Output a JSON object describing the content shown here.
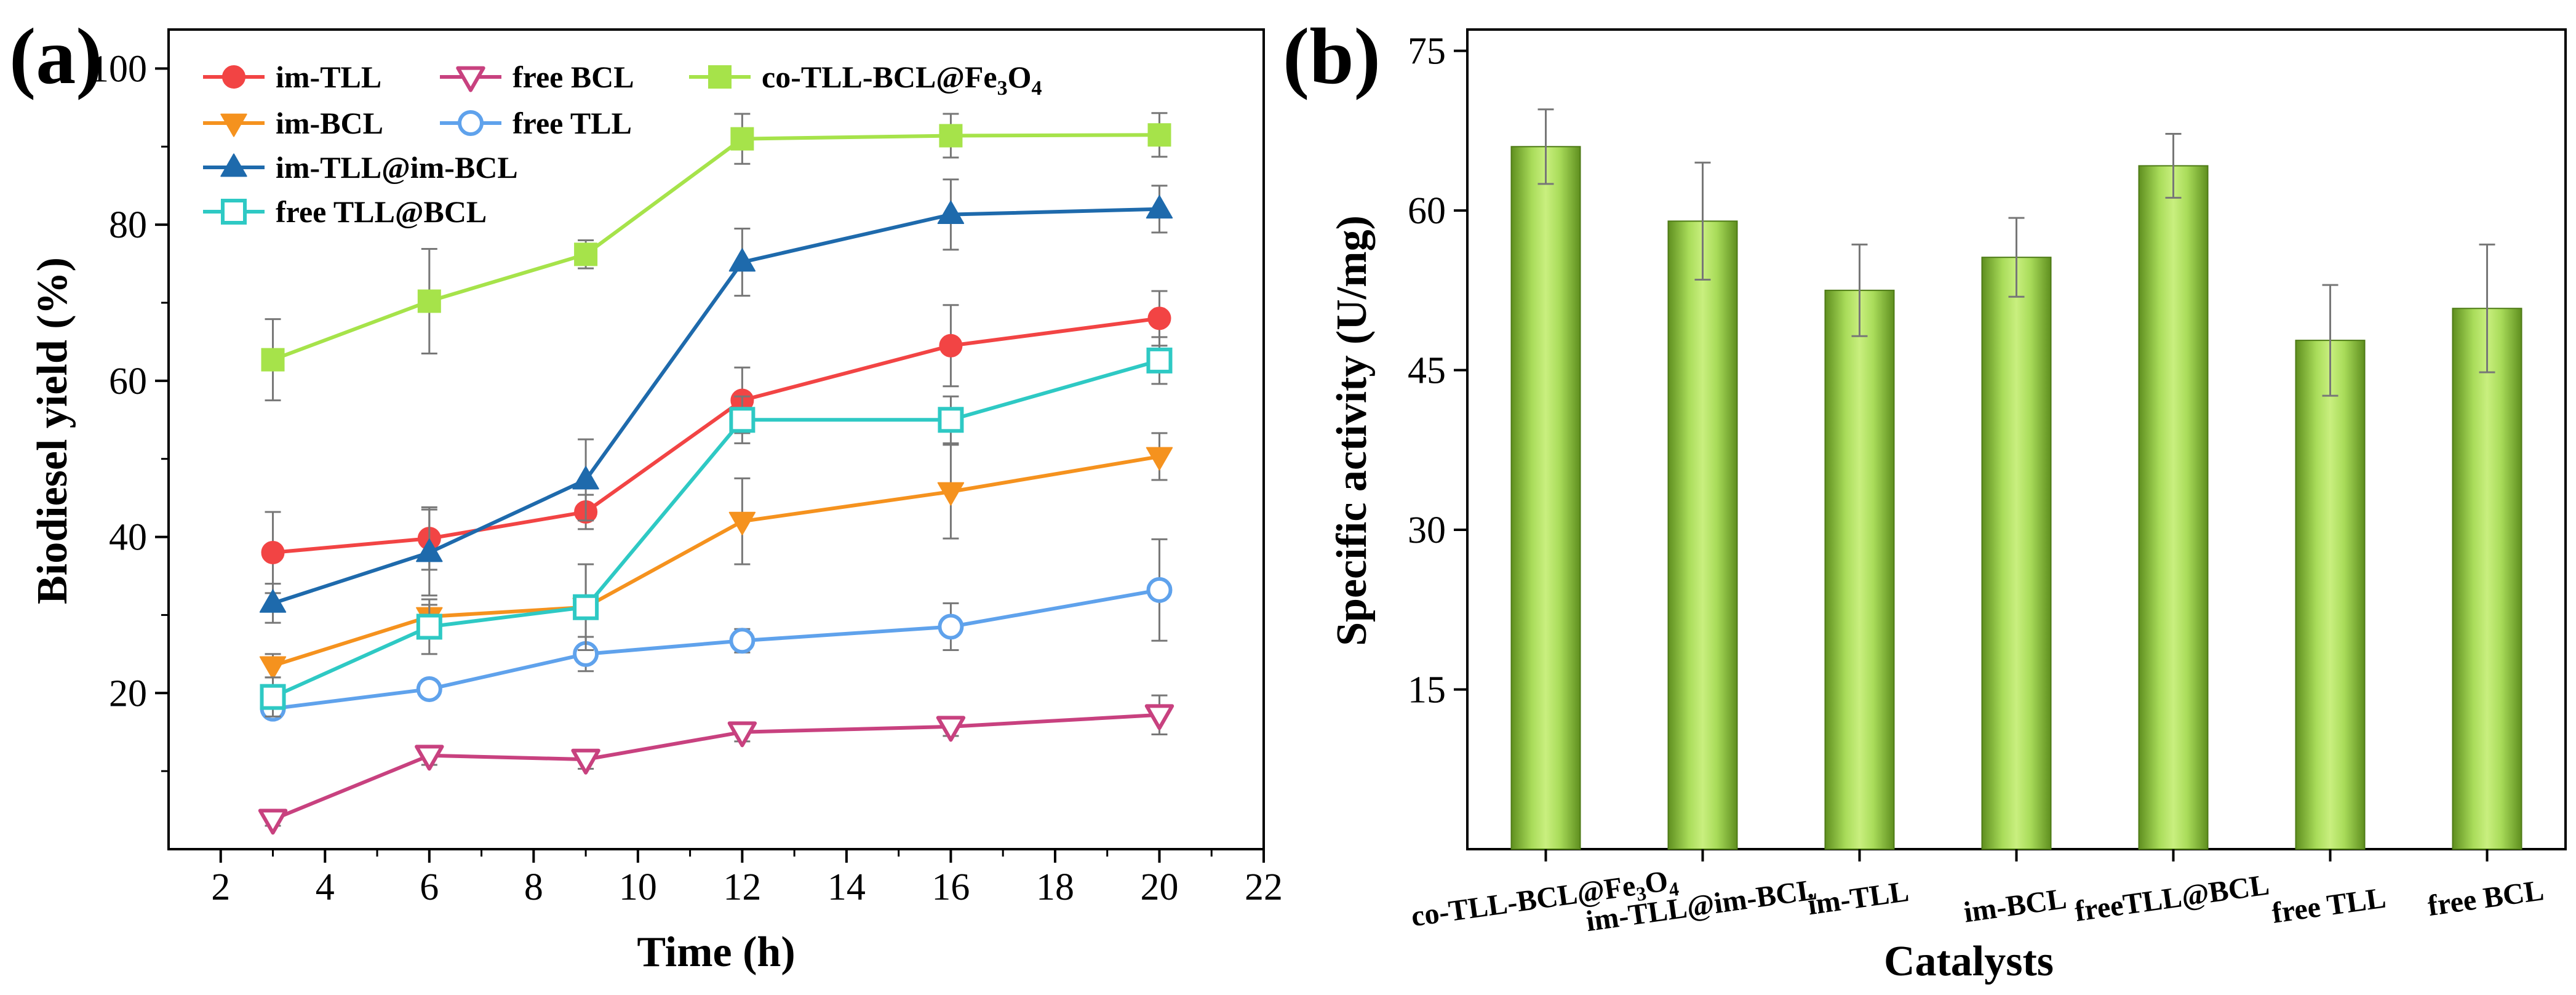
{
  "chart_data": [
    {
      "panel": "(a)",
      "type": "line",
      "title": "",
      "xlabel": "Time (h)",
      "ylabel": "Biodiesel yield (%)",
      "xlim": [
        1,
        22
      ],
      "ylim": [
        0,
        105
      ],
      "xticks": [
        2,
        4,
        6,
        8,
        10,
        12,
        14,
        16,
        18,
        20,
        22
      ],
      "yticks": [
        20,
        40,
        60,
        80,
        100
      ],
      "x": [
        3,
        6,
        9,
        12,
        16,
        20
      ],
      "legend_position": "top-left",
      "series": [
        {
          "name": "im-TLL",
          "label_main": "im-TLL",
          "color": "#f24444",
          "marker": "circle",
          "values": [
            38,
            39.8,
            43.2,
            57.5,
            64.5,
            68
          ],
          "errors": [
            5.2,
            4,
            2.2,
            4.2,
            5.2,
            3.5
          ]
        },
        {
          "name": "free BCL",
          "label_main": "free BCL",
          "color": "#c8417f",
          "marker": "triangle-down-open",
          "values": [
            3.8,
            12,
            11.5,
            15,
            15.7,
            17.2
          ],
          "errors": [
            0.8,
            1.2,
            1.2,
            1.2,
            1.2,
            2.5
          ]
        },
        {
          "name": "co-TLL-BCL@Fe3O4",
          "label_main": "co-TLL-BCL@Fe",
          "label_sub1": "3",
          "label_mid": "O",
          "label_sub2": "4",
          "color": "#a6e34a",
          "marker": "square",
          "values": [
            62.7,
            70.2,
            76.2,
            91,
            91.4,
            91.5
          ],
          "errors": [
            5.2,
            6.7,
            1.8,
            3.2,
            2.8,
            2.8
          ]
        },
        {
          "name": "im-BCL",
          "label_main": "im-BCL",
          "color": "#f5921e",
          "marker": "triangle-down",
          "values": [
            23.5,
            29.8,
            31,
            42,
            45.8,
            50.3
          ],
          "errors": [
            1.5,
            1.5,
            5.5,
            5.5,
            6,
            3
          ]
        },
        {
          "name": "free TLL",
          "label_main": "free TLL",
          "color": "#5fa2ec",
          "marker": "circle-open",
          "values": [
            18,
            20.5,
            25,
            26.7,
            28.5,
            33.2
          ],
          "errors": [
            1.2,
            1.2,
            2.2,
            1.5,
            3,
            6.5
          ]
        },
        {
          "name": "im-TLL@im-BCL",
          "label_main": "im-TLL@im-BCL",
          "color": "#1e6aac",
          "marker": "triangle-up",
          "values": [
            31.5,
            38,
            47.3,
            75.2,
            81.3,
            82
          ],
          "errors": [
            2.5,
            5.5,
            5.2,
            4.3,
            4.5,
            3
          ]
        },
        {
          "name": "free TLL@BCL",
          "label_main": "free TLL@BCL",
          "color": "#2ec9c4",
          "marker": "square-open",
          "values": [
            19.5,
            28.5,
            31,
            55,
            55,
            62.6
          ],
          "errors": [
            2.5,
            3.5,
            5.5,
            3,
            3,
            3
          ]
        }
      ]
    },
    {
      "panel": "(b)",
      "type": "bar",
      "title": "",
      "xlabel": "Catalysts",
      "ylabel": "Specific activity (U/mg)",
      "ylim": [
        0,
        77
      ],
      "yticks": [
        15,
        30,
        45,
        60,
        75
      ],
      "bar_color": "#8cc83c",
      "categories": [
        {
          "main": "co-TLL-BCL@Fe",
          "sub1": "3",
          "mid": "O",
          "sub2": "4"
        },
        {
          "main": "im-TLL@im-BCL"
        },
        {
          "main": "im-TLL"
        },
        {
          "main": "im-BCL"
        },
        {
          "main": "freeTLL@BCL"
        },
        {
          "main": "free TLL"
        },
        {
          "main": "free BCL"
        }
      ],
      "values": [
        66,
        59,
        52.5,
        55.6,
        64.2,
        47.8,
        50.8
      ],
      "errors": [
        3.5,
        5.5,
        4.3,
        3.7,
        3,
        5.2,
        6
      ]
    }
  ]
}
